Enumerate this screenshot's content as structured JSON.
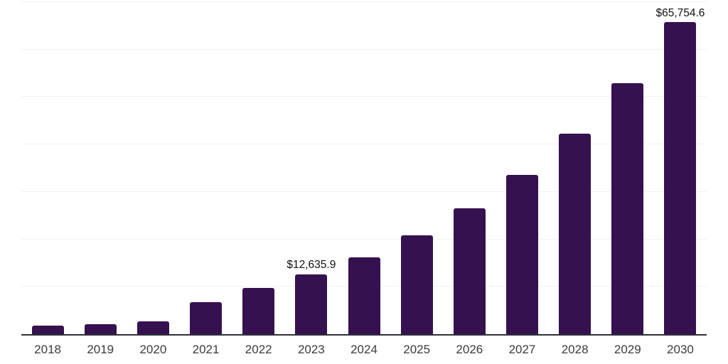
{
  "chart_data": {
    "type": "bar",
    "title": "",
    "xlabel": "",
    "ylabel": "",
    "categories": [
      "2018",
      "2019",
      "2020",
      "2021",
      "2022",
      "2023",
      "2024",
      "2025",
      "2026",
      "2027",
      "2028",
      "2029",
      "2030"
    ],
    "values": [
      1800,
      2150,
      2700,
      6700,
      9700,
      12635.9,
      16200,
      20900,
      26500,
      33600,
      42200,
      52900,
      65754.6
    ],
    "labeled_points": [
      {
        "category": "2023",
        "label": "$12,635.9"
      },
      {
        "category": "2030",
        "label": "$65,754.6"
      }
    ],
    "ylim": [
      0,
      70000
    ],
    "gridline_step": 10000,
    "grid": "horizontal-only",
    "legend": "none",
    "y_axis_labels_visible": false,
    "colors": {
      "bar": "#36114F",
      "gridline": "#f2f2f2",
      "axis": "#2e3137",
      "tick_text": "#3b3b3b",
      "label_text": "#111111",
      "background": "#ffffff"
    }
  }
}
